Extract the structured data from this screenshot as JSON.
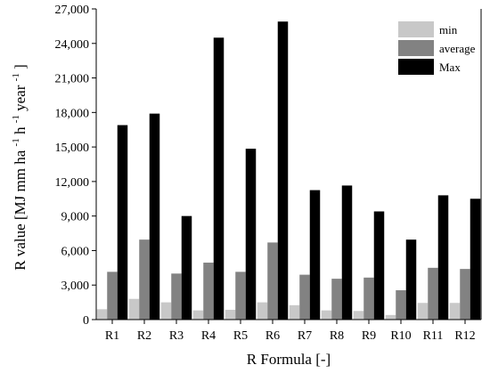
{
  "chart_data": {
    "type": "bar",
    "categories": [
      "R1",
      "R2",
      "R3",
      "R4",
      "R5",
      "R6",
      "R7",
      "R8",
      "R9",
      "R10",
      "R11",
      "R12"
    ],
    "series": [
      {
        "name": "min",
        "color": "#c8c8c8",
        "values": [
          900,
          1800,
          1500,
          800,
          850,
          1500,
          1250,
          800,
          750,
          400,
          1450,
          1450
        ]
      },
      {
        "name": "average",
        "color": "#828282",
        "values": [
          4150,
          6950,
          4000,
          4950,
          4150,
          6700,
          3900,
          3550,
          3650,
          2550,
          4500,
          4400
        ]
      },
      {
        "name": "Max",
        "color": "#000000",
        "values": [
          16900,
          17900,
          9000,
          24500,
          14850,
          25900,
          11250,
          11650,
          9400,
          6950,
          10800,
          10500
        ]
      }
    ],
    "xlabel": "R Formula [-]",
    "ylabel": {
      "main": "R value [MJ mm ha",
      "exp1": "-1",
      "mid": " h",
      "exp2": "-1",
      "end": " year",
      "exp3": "-1",
      "close": "]"
    },
    "ylim": [
      0,
      27000
    ],
    "yticks": [
      0,
      3000,
      6000,
      9000,
      12000,
      15000,
      18000,
      21000,
      24000,
      27000
    ],
    "ytick_labels": [
      "0",
      "3,000",
      "6,000",
      "9,000",
      "12,000",
      "15,000",
      "18,000",
      "21,000",
      "24,000",
      "27,000"
    ],
    "legend_position": "top-right",
    "grid": false
  }
}
